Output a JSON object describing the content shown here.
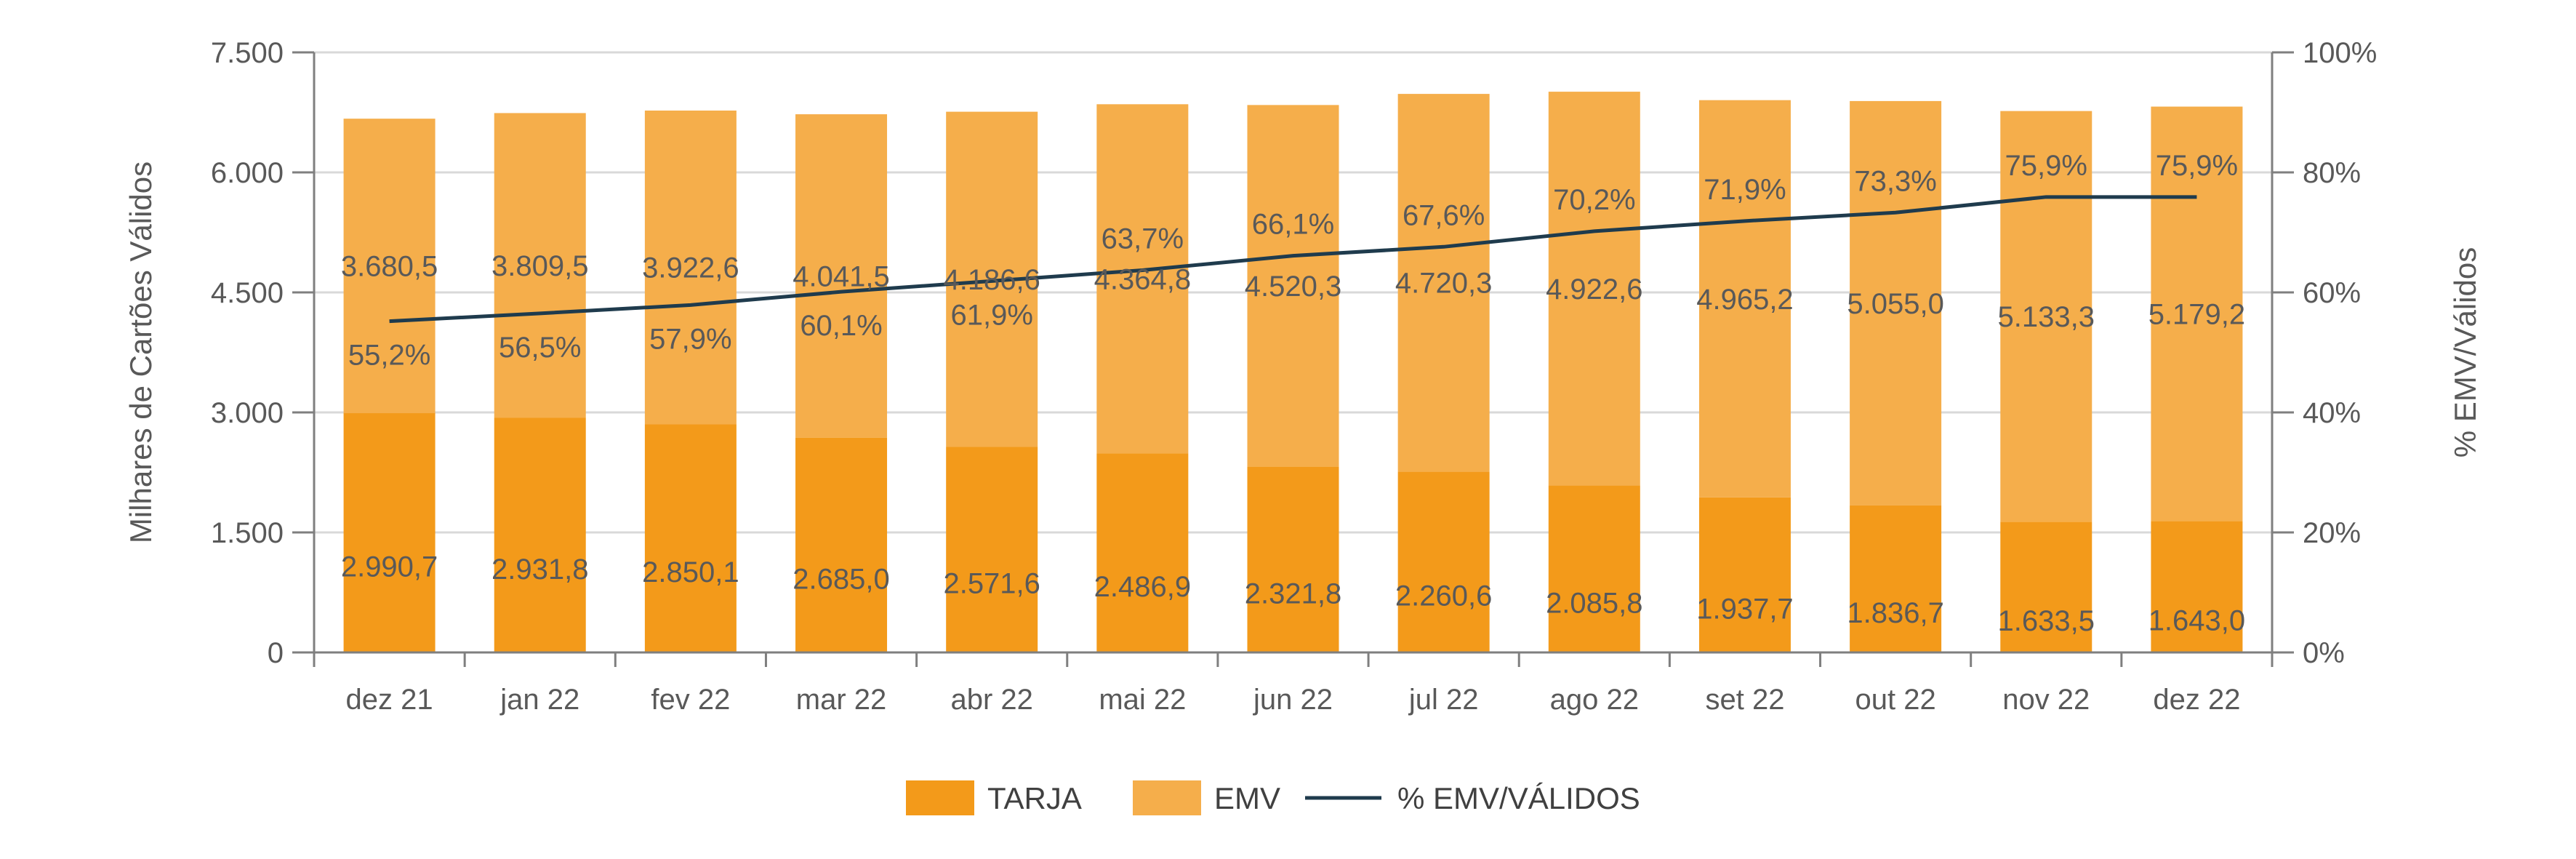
{
  "chart_data": {
    "type": "bar",
    "stacked": true,
    "categories": [
      "dez 21",
      "jan 22",
      "fev 22",
      "mar 22",
      "abr 22",
      "mai 22",
      "jun 22",
      "jul 22",
      "ago 22",
      "set 22",
      "out 22",
      "nov 22",
      "dez 22"
    ],
    "series": [
      {
        "name": "TARJA",
        "type": "bar",
        "axis": "left",
        "color": "#F39A1A",
        "values": [
          2990.7,
          2931.8,
          2850.1,
          2685.0,
          2571.6,
          2486.9,
          2321.8,
          2260.6,
          2085.8,
          1937.7,
          1836.7,
          1633.5,
          1643.0
        ],
        "labels": [
          "2.990,7",
          "2.931,8",
          "2.850,1",
          "2.685,0",
          "2.571,6",
          "2.486,9",
          "2.321,8",
          "2.260,6",
          "2.085,8",
          "1.937,7",
          "1.836,7",
          "1.633,5",
          "1.643,0"
        ]
      },
      {
        "name": "EMV",
        "type": "bar",
        "axis": "left",
        "color": "#F5AE4B",
        "values": [
          3680.5,
          3809.5,
          3922.6,
          4041.5,
          4186.6,
          4364.8,
          4520.3,
          4720.3,
          4922.6,
          4965.2,
          5055.0,
          5133.3,
          5179.2
        ],
        "labels": [
          "3.680,5",
          "3.809,5",
          "3.922,6",
          "4.041,5",
          "4.186,6",
          "4.364,8",
          "4.520,3",
          "4.720,3",
          "4.922,6",
          "4.965,2",
          "5.055,0",
          "5.133,3",
          "5.179,2"
        ]
      },
      {
        "name": "% EMV/VÁLIDOS",
        "type": "line",
        "axis": "right",
        "color": "#1F3B4D",
        "values": [
          55.2,
          56.5,
          57.9,
          60.1,
          61.9,
          63.7,
          66.1,
          67.6,
          70.2,
          71.9,
          73.3,
          75.9,
          75.9
        ],
        "labels": [
          "55,2%",
          "56,5%",
          "57,9%",
          "60,1%",
          "61,9%",
          "63,7%",
          "66,1%",
          "67,6%",
          "70,2%",
          "71,9%",
          "73,3%",
          "75,9%",
          "75,9%"
        ]
      }
    ],
    "left_axis": {
      "title": "Milhares de Cartões Válidos",
      "ylim": [
        0,
        7500
      ],
      "ticks": [
        0,
        1500,
        3000,
        4500,
        6000,
        7500
      ],
      "tick_labels": [
        "0",
        "1.500",
        "3.000",
        "4.500",
        "6.000",
        "7.500"
      ]
    },
    "right_axis": {
      "title": "% EMV/Válidos",
      "ylim": [
        0,
        100
      ],
      "ticks": [
        0,
        20,
        40,
        60,
        80,
        100
      ],
      "tick_labels": [
        "0%",
        "20%",
        "40%",
        "60%",
        "80%",
        "100%"
      ]
    },
    "grid": true,
    "legend": {
      "position": "bottom",
      "items": [
        "TARJA",
        "EMV",
        "% EMV/VÁLIDOS"
      ]
    }
  }
}
